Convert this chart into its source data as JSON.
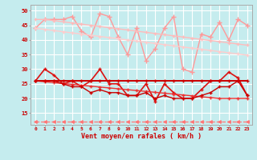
{
  "x": [
    0,
    1,
    2,
    3,
    4,
    5,
    6,
    7,
    8,
    9,
    10,
    11,
    12,
    13,
    14,
    15,
    16,
    17,
    18,
    19,
    20,
    21,
    22,
    23
  ],
  "background_color": "#c5ecee",
  "grid_color": "#ffffff",
  "xlabel": "Vent moyen/en rafales ( km/h )",
  "xlabel_color": "#cc0000",
  "tick_color": "#cc0000",
  "ylim": [
    11,
    52
  ],
  "yticks": [
    15,
    20,
    25,
    30,
    35,
    40,
    45,
    50
  ],
  "line_dashed": {
    "y": [
      12,
      12,
      12,
      12,
      12,
      12,
      12,
      12,
      12,
      12,
      12,
      12,
      12,
      12,
      12,
      12,
      12,
      12,
      12,
      12,
      12,
      12,
      12,
      12
    ],
    "color": "#ff7777",
    "lw": 0.9,
    "ls": "--",
    "marker": "<",
    "ms": 2.5
  },
  "line_pink_jagged": {
    "y": [
      44,
      47,
      47,
      47,
      48,
      43,
      41,
      49,
      48,
      41,
      35,
      44,
      33,
      37,
      44,
      48,
      30,
      29,
      42,
      41,
      46,
      40,
      47,
      45
    ],
    "color": "#ff9999",
    "lw": 1.0,
    "marker": "+",
    "ms": 4
  },
  "line_pink_trend_upper": {
    "y": [
      47,
      47,
      46.6,
      46.2,
      45.8,
      45.4,
      45,
      44.6,
      44.2,
      43.8,
      43.4,
      43,
      42.6,
      42.2,
      41.8,
      41.4,
      41,
      40.6,
      40.2,
      39.8,
      39.4,
      39,
      38.6,
      38.2
    ],
    "color": "#ffbbbb",
    "lw": 1.0,
    "marker": "+",
    "ms": 2.5
  },
  "line_pink_trend_lower": {
    "y": [
      44,
      43.6,
      43.2,
      42.8,
      42.4,
      42,
      41.6,
      41.2,
      40.8,
      40.4,
      40,
      39.6,
      39.2,
      38.8,
      38.4,
      38,
      37.6,
      37.2,
      36.8,
      36.4,
      36,
      35.6,
      35.2,
      34.8
    ],
    "color": "#ffcccc",
    "lw": 1.0,
    "marker": "+",
    "ms": 2.5
  },
  "line_red_jagged": {
    "y": [
      26,
      30,
      28,
      25,
      26,
      24,
      26,
      30,
      25,
      25,
      21,
      21,
      25,
      19,
      25,
      22,
      20,
      20,
      23,
      26,
      26,
      29,
      27,
      21
    ],
    "color": "#dd1111",
    "lw": 1.2,
    "marker": "+",
    "ms": 3.5
  },
  "line_red_trend_upper": {
    "y": [
      26,
      26,
      26,
      26,
      26,
      26,
      26,
      26,
      26,
      26,
      26,
      26,
      26,
      26,
      26,
      26,
      26,
      26,
      26,
      26,
      26,
      26,
      26,
      26
    ],
    "color": "#cc0000",
    "lw": 1.4,
    "marker": "+",
    "ms": 2.5
  },
  "line_red_trend_mid": {
    "y": [
      26,
      25.7,
      25.4,
      25.1,
      24.8,
      24.5,
      24.2,
      23.9,
      23.6,
      23.3,
      23,
      22.7,
      22.4,
      22.1,
      21.8,
      21.5,
      21.2,
      20.9,
      20.6,
      20.3,
      20,
      20,
      20,
      20
    ],
    "color": "#ee3333",
    "lw": 1.0,
    "marker": "+",
    "ms": 2.5
  },
  "line_red_lower_jagged": {
    "y": [
      26,
      26,
      26,
      25,
      24,
      24,
      22,
      23,
      22,
      22,
      21,
      21,
      22,
      20,
      21,
      20,
      20,
      20,
      21,
      22,
      24,
      24,
      26,
      21
    ],
    "color": "#cc0000",
    "lw": 1.0,
    "marker": "+",
    "ms": 2.5
  }
}
